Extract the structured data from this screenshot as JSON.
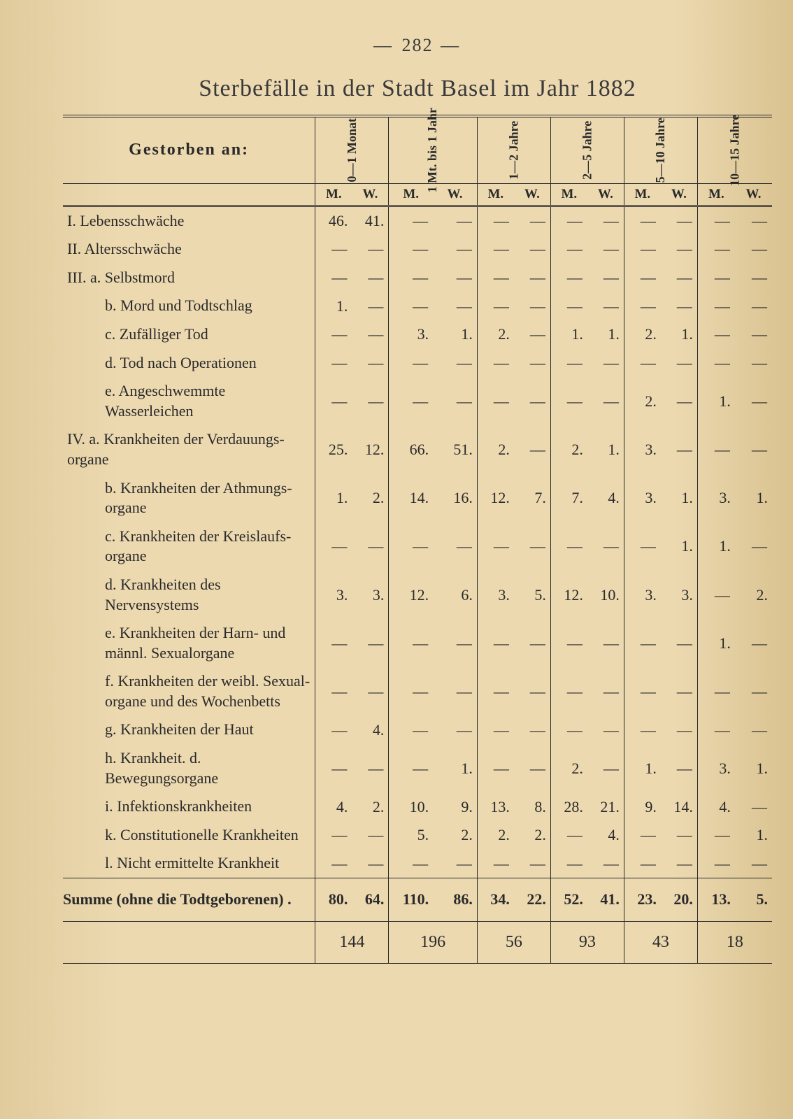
{
  "page_number": "282",
  "title": "Sterbefälle in der Stadt Basel im Jahr 1882",
  "header_label": "Gestorben an:",
  "age_columns": [
    {
      "label": "0—1 Monat"
    },
    {
      "label": "1 Mt. bis 1 Jahr"
    },
    {
      "label": "1—2 Jahre"
    },
    {
      "label": "2—5 Jahre"
    },
    {
      "label": "5—10 Jahre"
    },
    {
      "label": "10—15 Jahre"
    }
  ],
  "mw_labels": {
    "m": "M.",
    "w": "W."
  },
  "rows": [
    {
      "label": "I. Lebensschwäche",
      "indent": 1,
      "cells": [
        "46.",
        "41.",
        "—",
        "—",
        "—",
        "—",
        "—",
        "—",
        "—",
        "—",
        "—",
        "—"
      ]
    },
    {
      "label": "II. Altersschwäche",
      "indent": 1,
      "cells": [
        "—",
        "—",
        "—",
        "—",
        "—",
        "—",
        "—",
        "—",
        "—",
        "—",
        "—",
        "—"
      ]
    },
    {
      "label": "III. a. Selbstmord",
      "indent": 1,
      "cells": [
        "—",
        "—",
        "—",
        "—",
        "—",
        "—",
        "—",
        "—",
        "—",
        "—",
        "—",
        "—"
      ]
    },
    {
      "label": "b. Mord und Todtschlag",
      "indent": 2,
      "cells": [
        "1.",
        "—",
        "—",
        "—",
        "—",
        "—",
        "—",
        "—",
        "—",
        "—",
        "—",
        "—"
      ]
    },
    {
      "label": "c. Zufälliger Tod",
      "indent": 2,
      "cells": [
        "—",
        "—",
        "3.",
        "1.",
        "2.",
        "—",
        "1.",
        "1.",
        "2.",
        "1.",
        "—",
        "—"
      ]
    },
    {
      "label": "d. Tod nach Operationen",
      "indent": 2,
      "cells": [
        "—",
        "—",
        "—",
        "—",
        "—",
        "—",
        "—",
        "—",
        "—",
        "—",
        "—",
        "—"
      ]
    },
    {
      "label": "e. Angeschwemmte Wasserleichen",
      "indent": 2,
      "cells": [
        "—",
        "—",
        "—",
        "—",
        "—",
        "—",
        "—",
        "—",
        "2.",
        "—",
        "1.",
        "—"
      ]
    },
    {
      "label": "IV. a. Krankheiten der Verdauungs-organe",
      "indent": 1,
      "cells": [
        "25.",
        "12.",
        "66.",
        "51.",
        "2.",
        "—",
        "2.",
        "1.",
        "3.",
        "—",
        "—",
        "—"
      ]
    },
    {
      "label": "b. Krankheiten der Athmungs-organe",
      "indent": 2,
      "cells": [
        "1.",
        "2.",
        "14.",
        "16.",
        "12.",
        "7.",
        "7.",
        "4.",
        "3.",
        "1.",
        "3.",
        "1."
      ]
    },
    {
      "label": "c. Krankheiten der Kreislaufs-organe",
      "indent": 2,
      "cells": [
        "—",
        "—",
        "—",
        "—",
        "—",
        "—",
        "—",
        "—",
        "—",
        "1.",
        "1.",
        "—"
      ]
    },
    {
      "label": "d. Krankheiten des Nervensystems",
      "indent": 2,
      "cells": [
        "3.",
        "3.",
        "12.",
        "6.",
        "3.",
        "5.",
        "12.",
        "10.",
        "3.",
        "3.",
        "—",
        "2."
      ]
    },
    {
      "label": "e. Krankheiten der Harn- und männl. Sexualorgane",
      "indent": 2,
      "cells": [
        "—",
        "—",
        "—",
        "—",
        "—",
        "—",
        "—",
        "—",
        "—",
        "—",
        "1.",
        "—"
      ]
    },
    {
      "label": "f. Krankheiten der weibl. Sexual-organe und des Wochenbetts",
      "indent": 2,
      "cells": [
        "—",
        "—",
        "—",
        "—",
        "—",
        "—",
        "—",
        "—",
        "—",
        "—",
        "—",
        "—"
      ]
    },
    {
      "label": "g. Krankheiten der Haut",
      "indent": 2,
      "cells": [
        "—",
        "4.",
        "—",
        "—",
        "—",
        "—",
        "—",
        "—",
        "—",
        "—",
        "—",
        "—"
      ]
    },
    {
      "label": "h. Krankheit. d. Bewegungsorgane",
      "indent": 2,
      "cells": [
        "—",
        "—",
        "—",
        "1.",
        "—",
        "—",
        "2.",
        "—",
        "1.",
        "—",
        "3.",
        "1."
      ]
    },
    {
      "label": "i. Infektionskrankheiten",
      "indent": 2,
      "cells": [
        "4.",
        "2.",
        "10.",
        "9.",
        "13.",
        "8.",
        "28.",
        "21.",
        "9.",
        "14.",
        "4.",
        "—"
      ]
    },
    {
      "label": "k. Constitutionelle Krankheiten",
      "indent": 2,
      "cells": [
        "—",
        "—",
        "5.",
        "2.",
        "2.",
        "2.",
        "—",
        "4.",
        "—",
        "—",
        "—",
        "1."
      ]
    },
    {
      "label": "l. Nicht ermittelte Krankheit",
      "indent": 2,
      "cells": [
        "—",
        "—",
        "—",
        "—",
        "—",
        "—",
        "—",
        "—",
        "—",
        "—",
        "—",
        "—"
      ]
    }
  ],
  "sum_row": {
    "label": "Summe (ohne die Todtgeborenen) .",
    "cells": [
      "80.",
      "64.",
      "110.",
      "86.",
      "34.",
      "22.",
      "52.",
      "41.",
      "23.",
      "20.",
      "13.",
      "5."
    ]
  },
  "totals": [
    "144",
    "196",
    "56",
    "93",
    "43",
    "18"
  ]
}
